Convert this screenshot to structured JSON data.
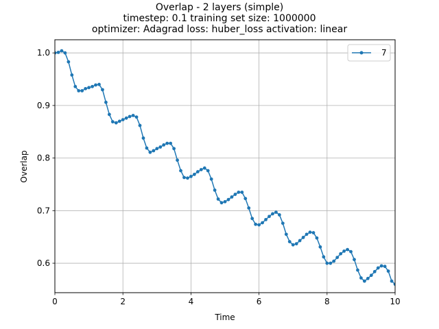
{
  "chart_data": {
    "type": "line",
    "title_lines": [
      "Overlap - 2 layers (simple)",
      "timestep: 0.1 training set size: 1000000",
      "optimizer: Adagrad loss: huber_loss activation: linear"
    ],
    "xlabel": "Time",
    "ylabel": "Overlap",
    "xlim": [
      0,
      10
    ],
    "ylim": [
      0.544,
      1.025
    ],
    "x_ticks": [
      0,
      2,
      4,
      6,
      8,
      10
    ],
    "x_tick_labels": [
      "0",
      "2",
      "4",
      "6",
      "8",
      "10"
    ],
    "y_ticks": [
      0.6,
      0.7,
      0.8,
      0.9,
      1.0
    ],
    "y_tick_labels": [
      "0.6",
      "0.7",
      "0.8",
      "0.9",
      "1.0"
    ],
    "grid": true,
    "legend_position": "top-right",
    "series": [
      {
        "name": "7",
        "color": "#1f77b4",
        "marker": "circle",
        "x": [
          0.0,
          0.1,
          0.2,
          0.3,
          0.4,
          0.5,
          0.6,
          0.7,
          0.8,
          0.9,
          1.0,
          1.1,
          1.2,
          1.3,
          1.4,
          1.5,
          1.6,
          1.7,
          1.8,
          1.9,
          2.0,
          2.1,
          2.2,
          2.3,
          2.4,
          2.5,
          2.6,
          2.7,
          2.8,
          2.9,
          3.0,
          3.1,
          3.2,
          3.3,
          3.4,
          3.5,
          3.6,
          3.7,
          3.8,
          3.9,
          4.0,
          4.1,
          4.2,
          4.3,
          4.4,
          4.5,
          4.6,
          4.7,
          4.8,
          4.9,
          5.0,
          5.1,
          5.2,
          5.3,
          5.4,
          5.5,
          5.6,
          5.7,
          5.8,
          5.9,
          6.0,
          6.1,
          6.2,
          6.3,
          6.4,
          6.5,
          6.6,
          6.7,
          6.8,
          6.9,
          7.0,
          7.1,
          7.2,
          7.3,
          7.4,
          7.5,
          7.6,
          7.7,
          7.8,
          7.9,
          8.0,
          8.1,
          8.2,
          8.3,
          8.4,
          8.5,
          8.6,
          8.7,
          8.8,
          8.9,
          9.0,
          9.1,
          9.2,
          9.3,
          9.4,
          9.5,
          9.6,
          9.7,
          9.8,
          9.9,
          10.0
        ],
        "y": [
          1.0,
          1.001,
          1.004,
          1.0,
          0.983,
          0.958,
          0.936,
          0.928,
          0.928,
          0.932,
          0.934,
          0.936,
          0.939,
          0.94,
          0.93,
          0.906,
          0.883,
          0.869,
          0.867,
          0.87,
          0.873,
          0.876,
          0.879,
          0.881,
          0.878,
          0.862,
          0.838,
          0.819,
          0.811,
          0.814,
          0.818,
          0.821,
          0.825,
          0.828,
          0.828,
          0.818,
          0.796,
          0.776,
          0.763,
          0.762,
          0.765,
          0.769,
          0.774,
          0.778,
          0.781,
          0.776,
          0.76,
          0.739,
          0.722,
          0.715,
          0.717,
          0.721,
          0.726,
          0.731,
          0.735,
          0.735,
          0.723,
          0.705,
          0.685,
          0.674,
          0.673,
          0.677,
          0.683,
          0.689,
          0.694,
          0.697,
          0.692,
          0.676,
          0.655,
          0.641,
          0.635,
          0.637,
          0.643,
          0.649,
          0.655,
          0.659,
          0.658,
          0.648,
          0.631,
          0.612,
          0.6,
          0.6,
          0.604,
          0.611,
          0.618,
          0.623,
          0.626,
          0.622,
          0.607,
          0.587,
          0.572,
          0.566,
          0.571,
          0.577,
          0.584,
          0.591,
          0.595,
          0.594,
          0.585,
          0.566,
          0.56
        ]
      }
    ]
  }
}
